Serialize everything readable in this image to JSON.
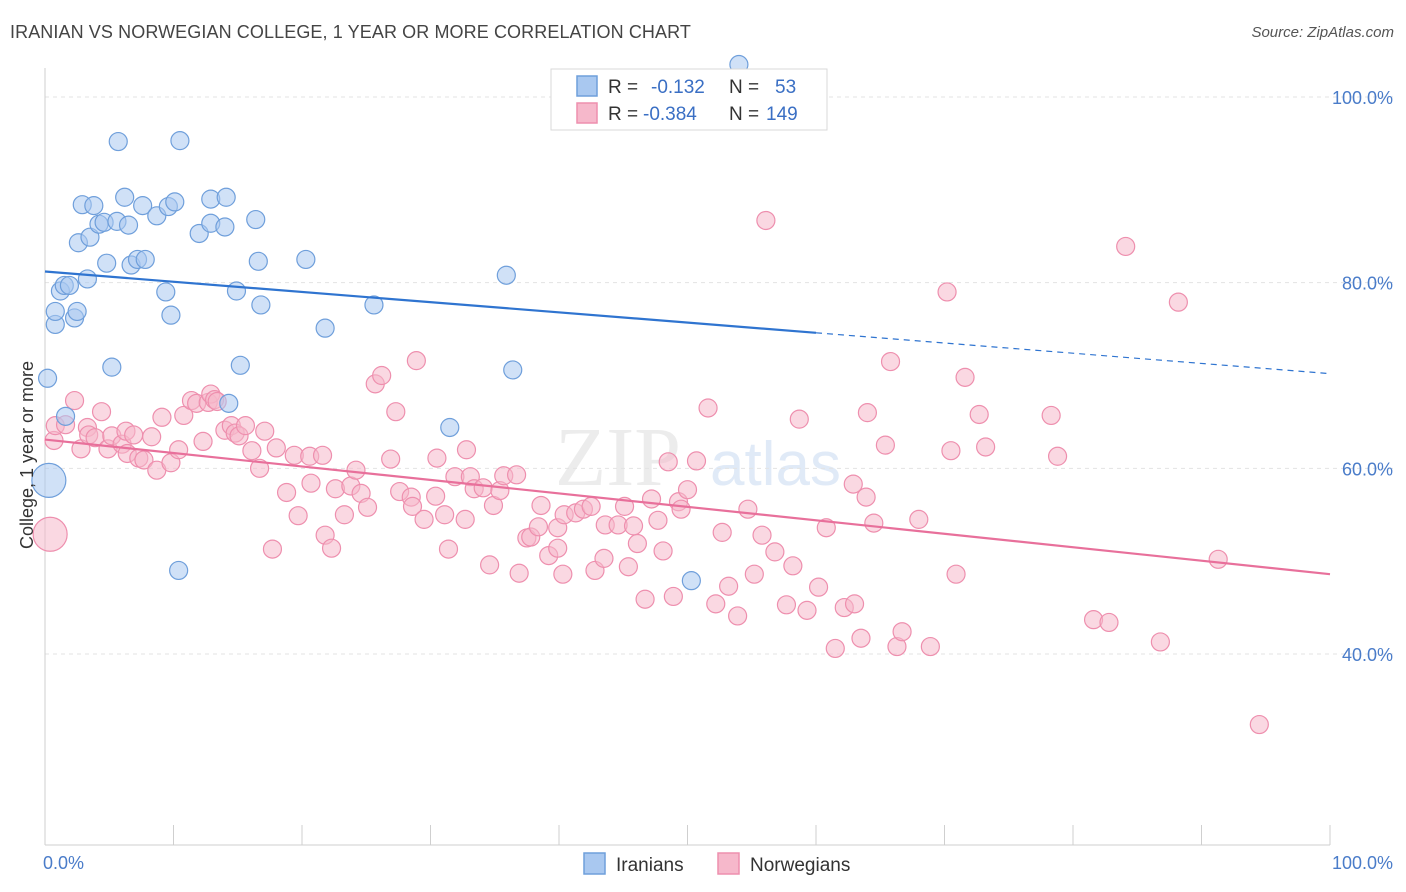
{
  "header": {
    "title": "IRANIAN VS NORWEGIAN COLLEGE, 1 YEAR OR MORE CORRELATION CHART",
    "source": "Source: ZipAtlas.com"
  },
  "watermark": {
    "zip": "ZIP",
    "atlas": "atlas"
  },
  "legend": {
    "rows": [
      {
        "r_label": "R =",
        "r_value": "-0.132",
        "n_label": "N =",
        "n_value": "53"
      },
      {
        "r_label": "R =",
        "r_value": "-0.384",
        "n_label": "N =",
        "n_value": "149"
      }
    ]
  },
  "bottom_legend": {
    "iranians": "Iranians",
    "norwegians": "Norwegians"
  },
  "colors": {
    "iranians_fill": "#a9c8f0",
    "iranians_stroke": "#6f9fdb",
    "iranians_line": "#2f74d0",
    "norwegians_fill": "#f6b8cb",
    "norwegians_stroke": "#ee8fae",
    "norwegians_line": "#e8709b",
    "tick_text": "#4a7cc9"
  },
  "chart_data": {
    "type": "scatter",
    "title": "IRANIAN VS NORWEGIAN COLLEGE, 1 YEAR OR MORE CORRELATION CHART",
    "xlabel": "",
    "ylabel": "College, 1 year or more",
    "xlim": [
      0,
      100
    ],
    "ylim": [
      20,
      100
    ],
    "x_tick_labels": [
      "0.0%",
      "100.0%"
    ],
    "y_tick_labels": [
      "100.0%",
      "80.0%",
      "60.0%",
      "40.0%"
    ],
    "y_ticks": [
      100,
      80,
      60,
      40
    ],
    "grid": true,
    "legend_position": "top-center",
    "series": [
      {
        "name": "Iranians",
        "r": -0.132,
        "n": 53,
        "trend": {
          "x0": 0,
          "y0": 81.2,
          "x1": 60,
          "y1": 74.6,
          "dash_to_x": 100,
          "dash_to_y": 70.2
        },
        "points": [
          [
            0.2,
            69.7,
            1
          ],
          [
            0.3,
            58.7,
            2
          ],
          [
            0.8,
            75.5,
            1
          ],
          [
            0.8,
            76.9,
            1
          ],
          [
            1.2,
            79.1,
            1
          ],
          [
            1.5,
            79.7,
            1
          ],
          [
            1.6,
            65.6,
            1
          ],
          [
            1.9,
            79.7,
            1
          ],
          [
            2.3,
            76.2,
            1
          ],
          [
            2.5,
            76.9,
            1
          ],
          [
            2.6,
            84.3,
            1
          ],
          [
            2.9,
            88.4,
            1
          ],
          [
            3.3,
            80.4,
            1
          ],
          [
            3.5,
            84.9,
            1
          ],
          [
            3.8,
            88.3,
            1
          ],
          [
            4.2,
            86.3,
            1
          ],
          [
            4.6,
            86.5,
            1
          ],
          [
            4.8,
            82.1,
            1
          ],
          [
            5.2,
            70.9,
            1
          ],
          [
            5.6,
            86.6,
            1
          ],
          [
            5.7,
            95.2,
            1
          ],
          [
            6.2,
            89.2,
            1
          ],
          [
            6.5,
            86.2,
            1
          ],
          [
            6.7,
            81.9,
            1
          ],
          [
            7.2,
            82.5,
            1
          ],
          [
            7.6,
            88.3,
            1
          ],
          [
            7.8,
            82.5,
            1
          ],
          [
            8.7,
            87.2,
            1
          ],
          [
            9.4,
            79.0,
            1
          ],
          [
            9.6,
            88.2,
            1
          ],
          [
            9.8,
            76.5,
            1
          ],
          [
            10.1,
            88.7,
            1
          ],
          [
            10.4,
            49.0,
            1
          ],
          [
            10.5,
            95.3,
            1
          ],
          [
            12.0,
            85.3,
            1
          ],
          [
            12.9,
            89.0,
            1
          ],
          [
            12.9,
            86.4,
            1
          ],
          [
            14.0,
            86.0,
            1
          ],
          [
            14.1,
            89.2,
            1
          ],
          [
            14.3,
            67.0,
            1
          ],
          [
            14.9,
            79.1,
            1
          ],
          [
            15.2,
            71.1,
            1
          ],
          [
            16.4,
            86.8,
            1
          ],
          [
            16.6,
            82.3,
            1
          ],
          [
            16.8,
            77.6,
            1
          ],
          [
            20.3,
            82.5,
            1
          ],
          [
            21.8,
            75.1,
            1
          ],
          [
            25.6,
            77.6,
            1
          ],
          [
            31.5,
            64.4,
            1
          ],
          [
            35.9,
            80.8,
            1
          ],
          [
            36.4,
            70.6,
            1
          ],
          [
            50.3,
            47.9,
            1
          ],
          [
            54.0,
            103.5,
            1
          ]
        ]
      },
      {
        "name": "Norwegians",
        "r": -0.384,
        "n": 149,
        "trend": {
          "x0": 0,
          "y0": 63.1,
          "x1": 100,
          "y1": 48.6
        },
        "points": [
          [
            0.4,
            52.9,
            2
          ],
          [
            0.7,
            63.0,
            1
          ],
          [
            0.8,
            64.6,
            1
          ],
          [
            1.6,
            64.7,
            1
          ],
          [
            2.3,
            67.3,
            1
          ],
          [
            2.8,
            62.1,
            1
          ],
          [
            3.3,
            64.4,
            1
          ],
          [
            3.4,
            63.6,
            1
          ],
          [
            3.9,
            63.3,
            1
          ],
          [
            4.4,
            66.1,
            1
          ],
          [
            4.9,
            62.1,
            1
          ],
          [
            5.2,
            63.5,
            1
          ],
          [
            6.0,
            62.6,
            1
          ],
          [
            6.3,
            64.0,
            1
          ],
          [
            6.4,
            61.6,
            1
          ],
          [
            6.9,
            63.6,
            1
          ],
          [
            7.3,
            61.1,
            1
          ],
          [
            7.7,
            60.9,
            1
          ],
          [
            8.3,
            63.4,
            1
          ],
          [
            8.7,
            59.8,
            1
          ],
          [
            9.1,
            65.5,
            1
          ],
          [
            9.8,
            60.6,
            1
          ],
          [
            10.4,
            62.0,
            1
          ],
          [
            10.8,
            65.7,
            1
          ],
          [
            11.4,
            67.3,
            1
          ],
          [
            11.8,
            67.0,
            1
          ],
          [
            12.3,
            62.9,
            1
          ],
          [
            12.7,
            67.1,
            1
          ],
          [
            12.9,
            68.0,
            1
          ],
          [
            13.2,
            67.4,
            1
          ],
          [
            13.4,
            67.2,
            1
          ],
          [
            14.0,
            64.1,
            1
          ],
          [
            14.5,
            64.6,
            1
          ],
          [
            14.8,
            63.8,
            1
          ],
          [
            15.1,
            63.5,
            1
          ],
          [
            15.6,
            64.6,
            1
          ],
          [
            16.1,
            61.9,
            1
          ],
          [
            16.7,
            60.0,
            1
          ],
          [
            17.1,
            64.0,
            1
          ],
          [
            17.7,
            51.3,
            1
          ],
          [
            18.0,
            62.2,
            1
          ],
          [
            18.8,
            57.4,
            1
          ],
          [
            19.4,
            61.4,
            1
          ],
          [
            19.7,
            54.9,
            1
          ],
          [
            20.6,
            61.3,
            1
          ],
          [
            20.7,
            58.4,
            1
          ],
          [
            21.6,
            61.4,
            1
          ],
          [
            21.8,
            52.8,
            1
          ],
          [
            22.3,
            51.4,
            1
          ],
          [
            22.6,
            57.8,
            1
          ],
          [
            23.3,
            55.0,
            1
          ],
          [
            23.8,
            58.1,
            1
          ],
          [
            24.2,
            59.8,
            1
          ],
          [
            24.6,
            57.3,
            1
          ],
          [
            25.1,
            55.8,
            1
          ],
          [
            25.7,
            69.1,
            1
          ],
          [
            26.2,
            70.0,
            1
          ],
          [
            26.9,
            61.0,
            1
          ],
          [
            27.3,
            66.1,
            1
          ],
          [
            27.6,
            57.5,
            1
          ],
          [
            28.5,
            56.9,
            1
          ],
          [
            28.6,
            55.9,
            1
          ],
          [
            28.9,
            71.6,
            1
          ],
          [
            29.5,
            54.5,
            1
          ],
          [
            30.4,
            57.0,
            1
          ],
          [
            30.5,
            61.1,
            1
          ],
          [
            31.1,
            55.0,
            1
          ],
          [
            31.4,
            51.3,
            1
          ],
          [
            31.9,
            59.1,
            1
          ],
          [
            32.7,
            54.5,
            1
          ],
          [
            32.8,
            62.0,
            1
          ],
          [
            33.1,
            59.1,
            1
          ],
          [
            33.4,
            57.8,
            1
          ],
          [
            34.1,
            57.9,
            1
          ],
          [
            34.6,
            49.6,
            1
          ],
          [
            34.9,
            56.0,
            1
          ],
          [
            35.4,
            57.6,
            1
          ],
          [
            35.7,
            59.2,
            1
          ],
          [
            36.7,
            59.3,
            1
          ],
          [
            36.9,
            48.7,
            1
          ],
          [
            37.5,
            52.5,
            1
          ],
          [
            37.8,
            52.6,
            1
          ],
          [
            38.4,
            53.7,
            1
          ],
          [
            38.6,
            56.0,
            1
          ],
          [
            39.2,
            50.6,
            1
          ],
          [
            39.9,
            51.4,
            1
          ],
          [
            39.9,
            53.6,
            1
          ],
          [
            40.3,
            48.6,
            1
          ],
          [
            40.4,
            55.0,
            1
          ],
          [
            41.3,
            55.2,
            1
          ],
          [
            41.9,
            55.6,
            1
          ],
          [
            42.5,
            55.9,
            1
          ],
          [
            42.8,
            49.0,
            1
          ],
          [
            43.5,
            50.3,
            1
          ],
          [
            43.6,
            53.9,
            1
          ],
          [
            44.6,
            53.9,
            1
          ],
          [
            45.1,
            55.9,
            1
          ],
          [
            45.4,
            49.4,
            1
          ],
          [
            45.8,
            53.8,
            1
          ],
          [
            46.1,
            51.9,
            1
          ],
          [
            46.7,
            45.9,
            1
          ],
          [
            47.2,
            56.7,
            1
          ],
          [
            47.7,
            54.4,
            1
          ],
          [
            48.1,
            51.1,
            1
          ],
          [
            48.5,
            60.7,
            1
          ],
          [
            48.9,
            46.2,
            1
          ],
          [
            49.3,
            56.4,
            1
          ],
          [
            49.5,
            55.6,
            1
          ],
          [
            50.0,
            57.7,
            1
          ],
          [
            50.7,
            60.8,
            1
          ],
          [
            51.6,
            66.5,
            1
          ],
          [
            52.2,
            45.4,
            1
          ],
          [
            52.7,
            53.1,
            1
          ],
          [
            53.2,
            47.3,
            1
          ],
          [
            53.9,
            44.1,
            1
          ],
          [
            54.7,
            55.6,
            1
          ],
          [
            55.2,
            48.6,
            1
          ],
          [
            55.8,
            52.8,
            1
          ],
          [
            56.1,
            86.7,
            1
          ],
          [
            56.8,
            51.0,
            1
          ],
          [
            57.7,
            45.3,
            1
          ],
          [
            58.2,
            49.5,
            1
          ],
          [
            58.7,
            65.3,
            1
          ],
          [
            59.3,
            44.7,
            1
          ],
          [
            60.2,
            47.2,
            1
          ],
          [
            60.8,
            53.6,
            1
          ],
          [
            61.5,
            40.6,
            1
          ],
          [
            62.2,
            45.0,
            1
          ],
          [
            62.9,
            58.3,
            1
          ],
          [
            63.0,
            45.4,
            1
          ],
          [
            63.5,
            41.7,
            1
          ],
          [
            63.9,
            56.9,
            1
          ],
          [
            64.0,
            66.0,
            1
          ],
          [
            64.5,
            54.1,
            1
          ],
          [
            65.4,
            62.5,
            1
          ],
          [
            65.8,
            71.5,
            1
          ],
          [
            66.3,
            40.8,
            1
          ],
          [
            66.7,
            42.4,
            1
          ],
          [
            68.0,
            54.5,
            1
          ],
          [
            68.9,
            40.8,
            1
          ],
          [
            70.2,
            79.0,
            1
          ],
          [
            70.5,
            61.9,
            1
          ],
          [
            70.9,
            48.6,
            1
          ],
          [
            71.6,
            69.8,
            1
          ],
          [
            72.7,
            65.8,
            1
          ],
          [
            73.2,
            62.3,
            1
          ],
          [
            78.3,
            65.7,
            1
          ],
          [
            78.8,
            61.3,
            1
          ],
          [
            81.6,
            43.7,
            1
          ],
          [
            82.8,
            43.4,
            1
          ],
          [
            84.1,
            83.9,
            1
          ],
          [
            86.8,
            41.3,
            1
          ],
          [
            88.2,
            77.9,
            1
          ],
          [
            91.3,
            50.2,
            1
          ],
          [
            94.5,
            32.4,
            1
          ]
        ]
      }
    ]
  }
}
